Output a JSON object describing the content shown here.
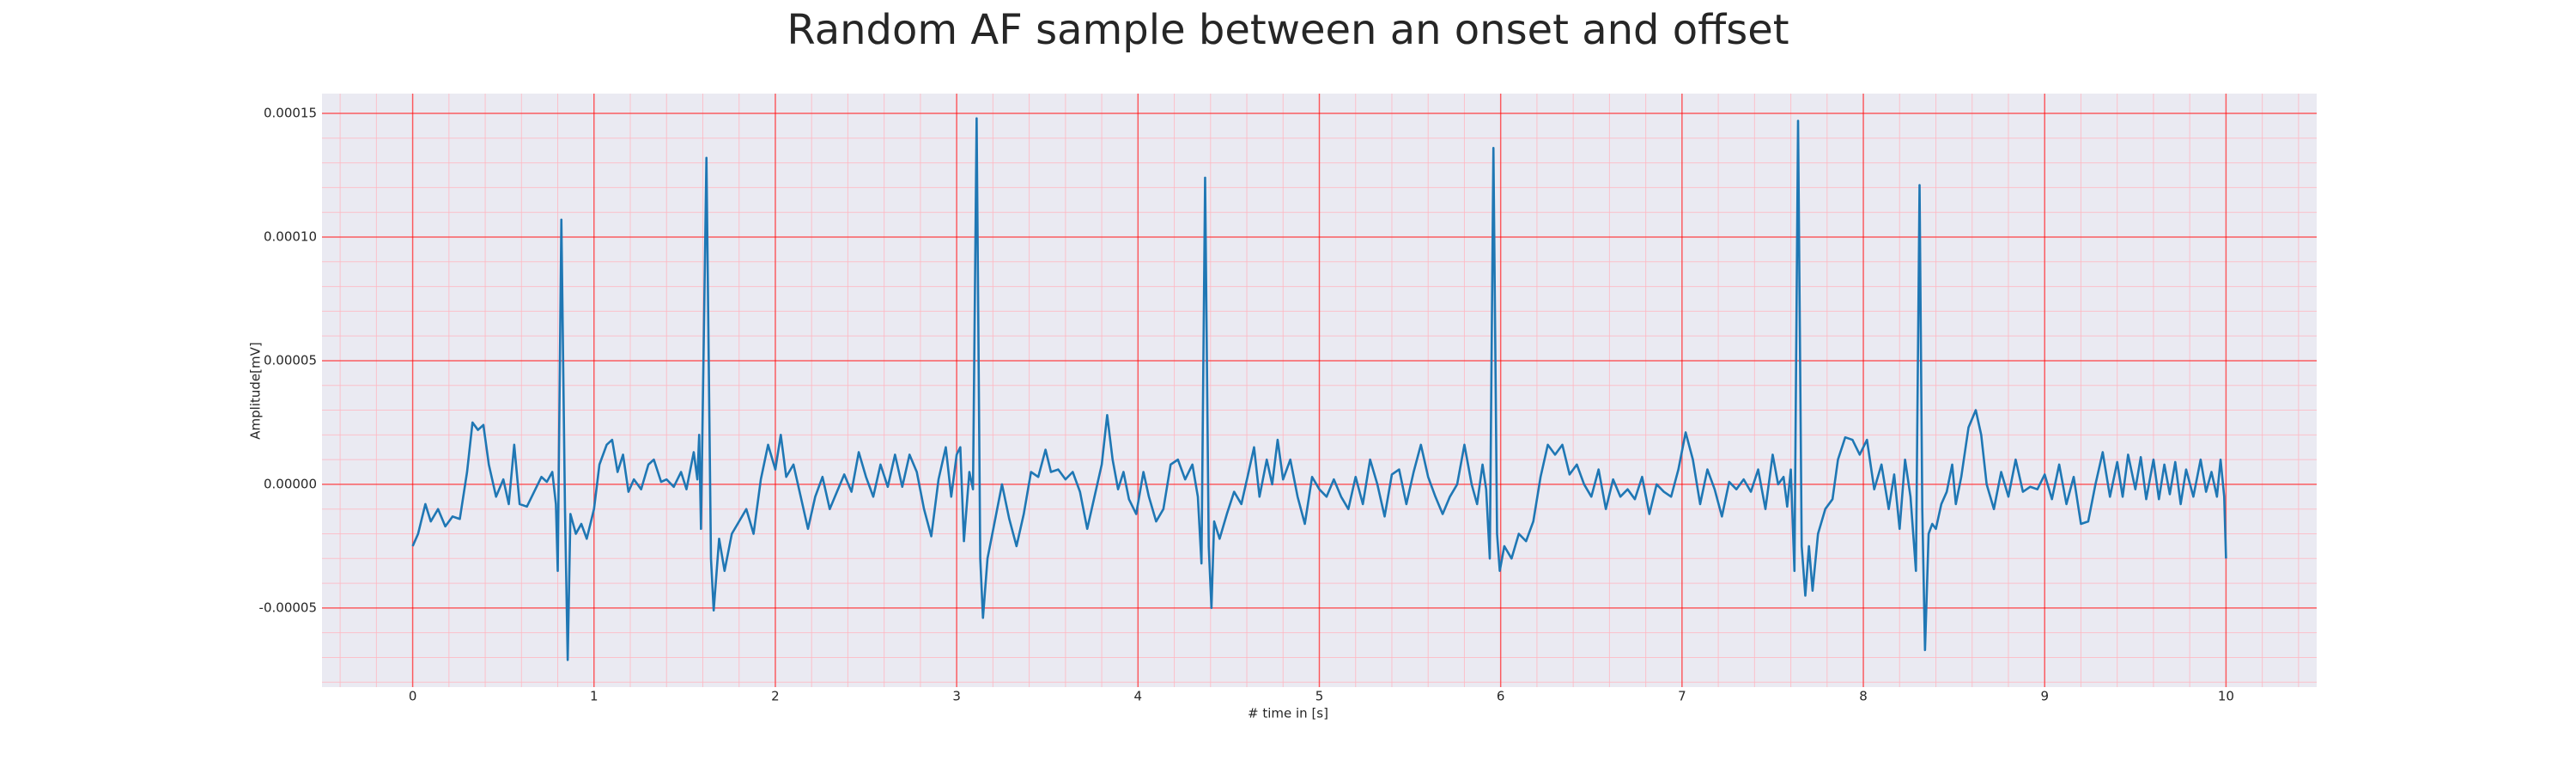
{
  "chart_data": {
    "type": "line",
    "title": "Random AF sample between an onset and offset",
    "xlabel": "# time in [s]",
    "ylabel": "Amplitude[mV]",
    "color": "#1f77b4",
    "grid": true,
    "minor_grid": true,
    "xlim": [
      -0.5,
      10.5
    ],
    "ylim": [
      -8.2e-05,
      0.000158
    ],
    "xticks": [
      0,
      1,
      2,
      3,
      4,
      5,
      6,
      7,
      8,
      9,
      10
    ],
    "yticks": [
      {
        "value": -5e-05,
        "label": "-0.00005"
      },
      {
        "value": 0,
        "label": "0.00000"
      },
      {
        "value": 5e-05,
        "label": "0.00005"
      },
      {
        "value": 0.0001,
        "label": "0.00010"
      },
      {
        "value": 0.00015,
        "label": "0.00015"
      }
    ],
    "x": [
      0.0,
      0.03,
      0.07,
      0.1,
      0.14,
      0.18,
      0.22,
      0.26,
      0.3,
      0.33,
      0.36,
      0.39,
      0.42,
      0.46,
      0.5,
      0.53,
      0.56,
      0.59,
      0.63,
      0.67,
      0.71,
      0.74,
      0.77,
      0.79,
      0.8,
      0.82,
      0.84,
      0.855,
      0.87,
      0.9,
      0.93,
      0.96,
      1.0,
      1.03,
      1.07,
      1.1,
      1.13,
      1.16,
      1.19,
      1.22,
      1.26,
      1.3,
      1.33,
      1.37,
      1.4,
      1.44,
      1.48,
      1.51,
      1.55,
      1.57,
      1.58,
      1.59,
      1.62,
      1.645,
      1.66,
      1.69,
      1.72,
      1.76,
      1.8,
      1.84,
      1.88,
      1.92,
      1.96,
      2.0,
      2.03,
      2.06,
      2.1,
      2.14,
      2.18,
      2.22,
      2.26,
      2.3,
      2.34,
      2.38,
      2.42,
      2.46,
      2.5,
      2.54,
      2.58,
      2.62,
      2.66,
      2.7,
      2.74,
      2.78,
      2.82,
      2.86,
      2.9,
      2.94,
      2.97,
      3.0,
      3.02,
      3.04,
      3.07,
      3.09,
      3.11,
      3.13,
      3.145,
      3.17,
      3.21,
      3.25,
      3.29,
      3.33,
      3.37,
      3.41,
      3.45,
      3.49,
      3.52,
      3.56,
      3.6,
      3.64,
      3.68,
      3.72,
      3.76,
      3.8,
      3.83,
      3.86,
      3.89,
      3.92,
      3.95,
      3.99,
      4.03,
      4.06,
      4.1,
      4.14,
      4.18,
      4.22,
      4.26,
      4.3,
      4.33,
      4.35,
      4.37,
      4.39,
      4.405,
      4.42,
      4.45,
      4.49,
      4.53,
      4.57,
      4.61,
      4.64,
      4.67,
      4.71,
      4.74,
      4.77,
      4.8,
      4.84,
      4.88,
      4.92,
      4.96,
      5.0,
      5.04,
      5.08,
      5.12,
      5.16,
      5.2,
      5.24,
      5.28,
      5.32,
      5.36,
      5.4,
      5.44,
      5.48,
      5.52,
      5.56,
      5.6,
      5.64,
      5.68,
      5.72,
      5.76,
      5.8,
      5.84,
      5.87,
      5.9,
      5.92,
      5.94,
      5.96,
      5.98,
      5.995,
      6.02,
      6.06,
      6.1,
      6.14,
      6.18,
      6.22,
      6.26,
      6.3,
      6.34,
      6.38,
      6.42,
      6.46,
      6.5,
      6.54,
      6.58,
      6.62,
      6.66,
      6.7,
      6.74,
      6.78,
      6.82,
      6.86,
      6.9,
      6.94,
      6.98,
      7.02,
      7.06,
      7.1,
      7.14,
      7.18,
      7.22,
      7.26,
      7.3,
      7.34,
      7.38,
      7.42,
      7.46,
      7.5,
      7.53,
      7.56,
      7.58,
      7.6,
      7.62,
      7.64,
      7.66,
      7.68,
      7.7,
      7.72,
      7.75,
      7.79,
      7.83,
      7.86,
      7.9,
      7.94,
      7.98,
      8.02,
      8.06,
      8.1,
      8.14,
      8.17,
      8.2,
      8.23,
      8.26,
      8.29,
      8.31,
      8.325,
      8.34,
      8.36,
      8.38,
      8.4,
      8.43,
      8.46,
      8.49,
      8.51,
      8.54,
      8.58,
      8.62,
      8.65,
      8.68,
      8.72,
      8.76,
      8.8,
      8.84,
      8.88,
      8.92,
      8.96,
      9.0,
      9.04,
      9.08,
      9.12,
      9.16,
      9.2,
      9.24,
      9.28,
      9.32,
      9.36,
      9.4,
      9.43,
      9.46,
      9.5,
      9.53,
      9.56,
      9.6,
      9.63,
      9.66,
      9.69,
      9.72,
      9.75,
      9.78,
      9.82,
      9.86,
      9.89,
      9.92,
      9.95,
      9.97,
      9.99,
      10.0
    ],
    "values": [
      -2.5e-05,
      -2e-05,
      -8e-06,
      -1.5e-05,
      -1e-05,
      -1.7e-05,
      -1.3e-05,
      -1.4e-05,
      5e-06,
      2.5e-05,
      2.2e-05,
      2.4e-05,
      8e-06,
      -5e-06,
      2e-06,
      -8e-06,
      1.6e-05,
      -8e-06,
      -9e-06,
      -3e-06,
      3e-06,
      1e-06,
      5e-06,
      -8e-06,
      -3.5e-05,
      0.000107,
      -1e-05,
      -7.1e-05,
      -1.2e-05,
      -2e-05,
      -1.6e-05,
      -2.2e-05,
      -1e-05,
      8e-06,
      1.6e-05,
      1.8e-05,
      5e-06,
      1.2e-05,
      -3e-06,
      2e-06,
      -2e-06,
      8e-06,
      1e-05,
      1e-06,
      2e-06,
      -1e-06,
      5e-06,
      -2e-06,
      1.3e-05,
      2e-06,
      2e-05,
      -1.8e-05,
      0.000132,
      -3e-05,
      -5.1e-05,
      -2.2e-05,
      -3.5e-05,
      -2e-05,
      -1.5e-05,
      -1e-05,
      -2e-05,
      2e-06,
      1.6e-05,
      6e-06,
      2e-05,
      3e-06,
      8e-06,
      -5e-06,
      -1.8e-05,
      -5e-06,
      3e-06,
      -1e-05,
      -3e-06,
      4e-06,
      -3e-06,
      1.3e-05,
      3e-06,
      -5e-06,
      8e-06,
      -1e-06,
      1.2e-05,
      -1e-06,
      1.2e-05,
      5e-06,
      -1e-05,
      -2.1e-05,
      2e-06,
      1.5e-05,
      -5e-06,
      1.2e-05,
      1.5e-05,
      -2.3e-05,
      5e-06,
      -2e-06,
      0.000148,
      -3e-05,
      -5.4e-05,
      -3e-05,
      -1.5e-05,
      0,
      -1.4e-05,
      -2.5e-05,
      -1.2e-05,
      5e-06,
      3e-06,
      1.4e-05,
      5e-06,
      6e-06,
      2e-06,
      5e-06,
      -3e-06,
      -1.8e-05,
      -5e-06,
      8e-06,
      2.8e-05,
      1e-05,
      -2e-06,
      5e-06,
      -6e-06,
      -1.2e-05,
      5e-06,
      -5e-06,
      -1.5e-05,
      -1e-05,
      8e-06,
      1e-05,
      2e-06,
      8e-06,
      -5e-06,
      -3.2e-05,
      0.000124,
      -2.5e-05,
      -5e-05,
      -1.5e-05,
      -2.2e-05,
      -1.2e-05,
      -3e-06,
      -8e-06,
      5e-06,
      1.5e-05,
      -5e-06,
      1e-05,
      0,
      1.8e-05,
      2e-06,
      1e-05,
      -5e-06,
      -1.6e-05,
      3e-06,
      -2e-06,
      -5e-06,
      2e-06,
      -5e-06,
      -1e-05,
      3e-06,
      -8e-06,
      1e-05,
      0,
      -1.3e-05,
      4e-06,
      6e-06,
      -8e-06,
      5e-06,
      1.6e-05,
      3e-06,
      -5e-06,
      -1.2e-05,
      -5e-06,
      0,
      1.6e-05,
      0,
      -8e-06,
      8e-06,
      -2e-06,
      -3e-05,
      0.000136,
      -2e-05,
      -3.5e-05,
      -2.5e-05,
      -3e-05,
      -2e-05,
      -2.3e-05,
      -1.5e-05,
      3e-06,
      1.6e-05,
      1.2e-05,
      1.6e-05,
      4e-06,
      8e-06,
      0,
      -5e-06,
      6e-06,
      -1e-05,
      2e-06,
      -5e-06,
      -2e-06,
      -6e-06,
      3e-06,
      -1.2e-05,
      0,
      -3e-06,
      -5e-06,
      6e-06,
      2.1e-05,
      1e-05,
      -8e-06,
      6e-06,
      -2e-06,
      -1.3e-05,
      1e-06,
      -2e-06,
      2e-06,
      -3e-06,
      6e-06,
      -1e-05,
      1.2e-05,
      0,
      3e-06,
      -9e-06,
      6e-06,
      -3.5e-05,
      0.000147,
      -2.5e-05,
      -4.5e-05,
      -2.5e-05,
      -4.3e-05,
      -2e-05,
      -1e-05,
      -6e-06,
      1e-05,
      1.9e-05,
      1.8e-05,
      1.2e-05,
      1.8e-05,
      -2e-06,
      8e-06,
      -1e-05,
      4e-06,
      -1.8e-05,
      1e-05,
      -5e-06,
      -3.5e-05,
      0.000121,
      -1e-05,
      -6.7e-05,
      -2e-05,
      -1.6e-05,
      -1.8e-05,
      -8e-06,
      -3e-06,
      8e-06,
      -8e-06,
      3e-06,
      2.3e-05,
      3e-05,
      2e-05,
      0,
      -1e-05,
      5e-06,
      -5e-06,
      1e-05,
      -3e-06,
      -1e-06,
      -2e-06,
      4e-06,
      -6e-06,
      8e-06,
      -8e-06,
      3e-06,
      -1.6e-05,
      -1.5e-05,
      0,
      1.3e-05,
      -5e-06,
      9e-06,
      -5e-06,
      1.2e-05,
      -2e-06,
      1.1e-05,
      -6e-06,
      1e-05,
      -6e-06,
      8e-06,
      -4e-06,
      9e-06,
      -8e-06,
      6e-06,
      -5e-06,
      1e-05,
      -3e-06,
      5e-06,
      -5e-06,
      1e-05,
      -5e-06,
      -3e-05
    ]
  }
}
